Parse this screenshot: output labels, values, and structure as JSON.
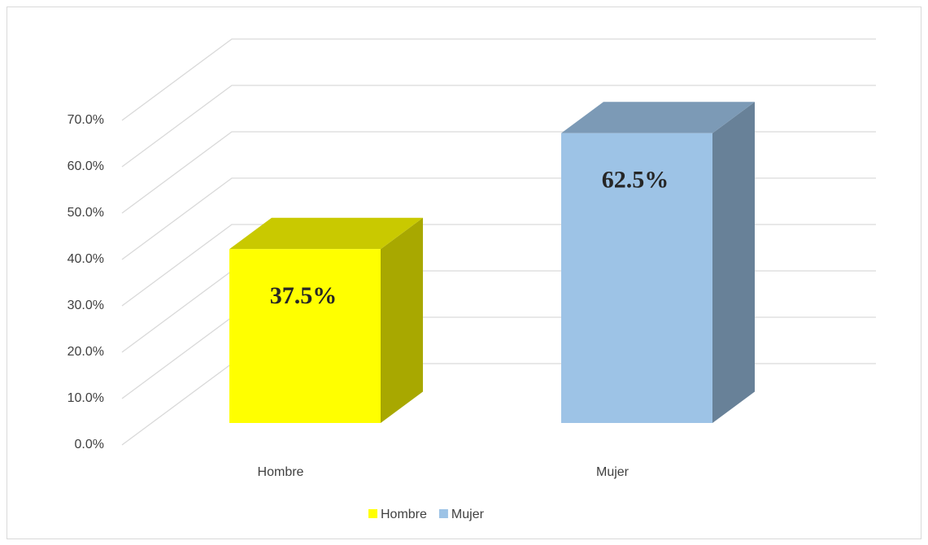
{
  "chart_data": {
    "type": "bar3d",
    "categories": [
      "Hombre",
      "Mujer"
    ],
    "values": [
      37.5,
      62.5
    ],
    "value_labels": [
      "37.5%",
      "62.5%"
    ],
    "colors": [
      "#ffff00",
      "#9dc3e6"
    ],
    "legend": "bottom",
    "grid": true,
    "ylim": [
      0,
      70
    ],
    "yticks": [
      {
        "value": 0,
        "label": "0.0%"
      },
      {
        "value": 10,
        "label": "10.0%"
      },
      {
        "value": 20,
        "label": "20.0%"
      },
      {
        "value": 30,
        "label": "30.0%"
      },
      {
        "value": 40,
        "label": "40.0%"
      },
      {
        "value": 50,
        "label": "50.0%"
      },
      {
        "value": 60,
        "label": "60.0%"
      },
      {
        "value": 70,
        "label": "70.0%"
      }
    ]
  }
}
